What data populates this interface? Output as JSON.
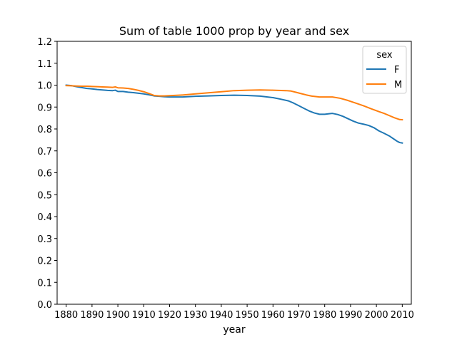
{
  "chart_data": {
    "type": "line",
    "title": "Sum of table 1000 prop by year and sex",
    "xlabel": "year",
    "ylabel": "",
    "xlim": [
      1876.5,
      2013.5
    ],
    "ylim": [
      0.0,
      1.2
    ],
    "x_ticks": [
      1880,
      1890,
      1900,
      1910,
      1920,
      1930,
      1940,
      1950,
      1960,
      1970,
      1980,
      1990,
      2000,
      2010
    ],
    "y_ticks": [
      0.0,
      0.1,
      0.2,
      0.3,
      0.4,
      0.5,
      0.6,
      0.7,
      0.8,
      0.9,
      1.0,
      1.1,
      1.2
    ],
    "grid": false,
    "legend": {
      "title": "sex",
      "placement": "top-right"
    },
    "series": [
      {
        "name": "F",
        "color": "#1f77b4",
        "points": [
          [
            1880,
            1.0
          ],
          [
            1882,
            0.998
          ],
          [
            1884,
            0.993
          ],
          [
            1886,
            0.989
          ],
          [
            1888,
            0.985
          ],
          [
            1890,
            0.983
          ],
          [
            1892,
            0.98
          ],
          [
            1894,
            0.978
          ],
          [
            1896,
            0.976
          ],
          [
            1898,
            0.975
          ],
          [
            1899,
            0.977
          ],
          [
            1900,
            0.971
          ],
          [
            1902,
            0.971
          ],
          [
            1904,
            0.968
          ],
          [
            1906,
            0.966
          ],
          [
            1908,
            0.963
          ],
          [
            1910,
            0.96
          ],
          [
            1912,
            0.956
          ],
          [
            1914,
            0.951
          ],
          [
            1916,
            0.949
          ],
          [
            1918,
            0.947
          ],
          [
            1920,
            0.946
          ],
          [
            1925,
            0.946
          ],
          [
            1930,
            0.949
          ],
          [
            1935,
            0.951
          ],
          [
            1940,
            0.953
          ],
          [
            1945,
            0.954
          ],
          [
            1950,
            0.953
          ],
          [
            1955,
            0.95
          ],
          [
            1960,
            0.943
          ],
          [
            1963,
            0.936
          ],
          [
            1966,
            0.928
          ],
          [
            1968,
            0.918
          ],
          [
            1970,
            0.906
          ],
          [
            1972,
            0.894
          ],
          [
            1974,
            0.882
          ],
          [
            1976,
            0.873
          ],
          [
            1978,
            0.867
          ],
          [
            1980,
            0.867
          ],
          [
            1982,
            0.87
          ],
          [
            1983,
            0.871
          ],
          [
            1985,
            0.866
          ],
          [
            1987,
            0.858
          ],
          [
            1989,
            0.847
          ],
          [
            1991,
            0.836
          ],
          [
            1993,
            0.827
          ],
          [
            1995,
            0.822
          ],
          [
            1997,
            0.816
          ],
          [
            1999,
            0.806
          ],
          [
            2001,
            0.791
          ],
          [
            2003,
            0.78
          ],
          [
            2005,
            0.768
          ],
          [
            2007,
            0.752
          ],
          [
            2008,
            0.744
          ],
          [
            2009,
            0.738
          ],
          [
            2010,
            0.736
          ]
        ]
      },
      {
        "name": "M",
        "color": "#ff7f0e",
        "points": [
          [
            1880,
            0.998
          ],
          [
            1882,
            0.997
          ],
          [
            1884,
            0.996
          ],
          [
            1886,
            0.995
          ],
          [
            1888,
            0.995
          ],
          [
            1890,
            0.994
          ],
          [
            1892,
            0.993
          ],
          [
            1894,
            0.992
          ],
          [
            1896,
            0.991
          ],
          [
            1898,
            0.99
          ],
          [
            1899,
            0.992
          ],
          [
            1900,
            0.988
          ],
          [
            1902,
            0.987
          ],
          [
            1904,
            0.985
          ],
          [
            1906,
            0.981
          ],
          [
            1908,
            0.976
          ],
          [
            1910,
            0.97
          ],
          [
            1912,
            0.962
          ],
          [
            1914,
            0.953
          ],
          [
            1916,
            0.951
          ],
          [
            1918,
            0.951
          ],
          [
            1920,
            0.952
          ],
          [
            1925,
            0.955
          ],
          [
            1930,
            0.96
          ],
          [
            1935,
            0.965
          ],
          [
            1940,
            0.97
          ],
          [
            1945,
            0.975
          ],
          [
            1950,
            0.977
          ],
          [
            1955,
            0.978
          ],
          [
            1960,
            0.977
          ],
          [
            1965,
            0.975
          ],
          [
            1967,
            0.973
          ],
          [
            1969,
            0.967
          ],
          [
            1971,
            0.961
          ],
          [
            1973,
            0.955
          ],
          [
            1975,
            0.95
          ],
          [
            1978,
            0.946
          ],
          [
            1981,
            0.946
          ],
          [
            1983,
            0.946
          ],
          [
            1986,
            0.94
          ],
          [
            1989,
            0.93
          ],
          [
            1992,
            0.918
          ],
          [
            1995,
            0.906
          ],
          [
            1998,
            0.892
          ],
          [
            2001,
            0.879
          ],
          [
            2003,
            0.871
          ],
          [
            2005,
            0.861
          ],
          [
            2007,
            0.851
          ],
          [
            2009,
            0.843
          ],
          [
            2010,
            0.842
          ]
        ]
      }
    ]
  }
}
